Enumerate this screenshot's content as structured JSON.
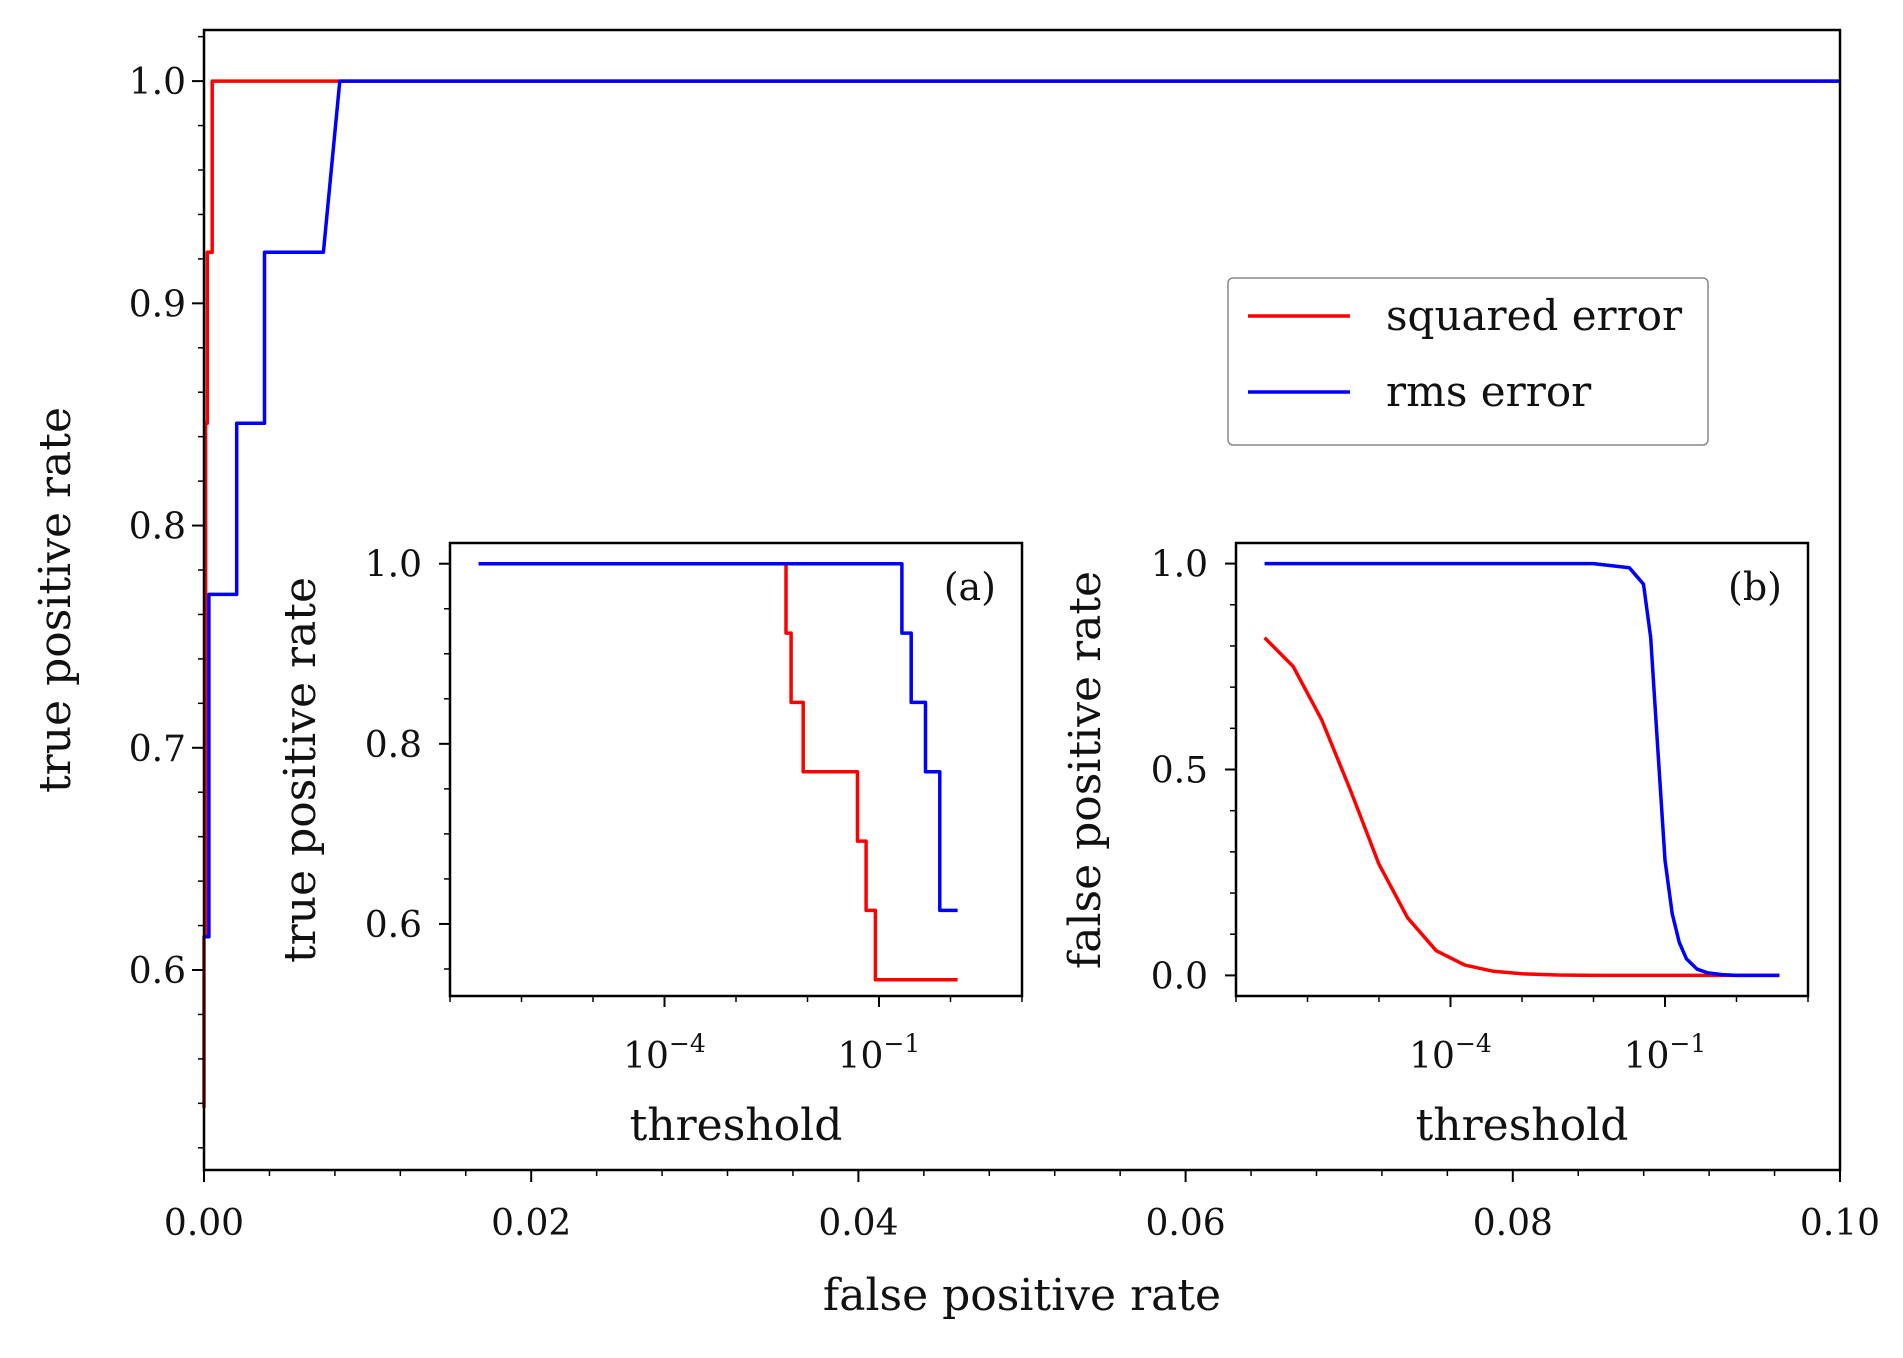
{
  "colors": {
    "squared_error": "#ff0000",
    "rms_error": "#0000ff",
    "axis": "#000000"
  },
  "chart_data": [
    {
      "id": "main",
      "type": "line",
      "title": "",
      "xlabel": "false positive rate",
      "ylabel": "true positive rate",
      "xlim": [
        0.0,
        0.1
      ],
      "ylim": [
        0.51,
        1.023
      ],
      "xticks": [
        0.0,
        0.02,
        0.04,
        0.06,
        0.08,
        0.1
      ],
      "xtick_labels": [
        "0.00",
        "0.02",
        "0.04",
        "0.06",
        "0.08",
        "0.10"
      ],
      "yticks": [
        0.6,
        0.7,
        0.8,
        0.9,
        1.0
      ],
      "ytick_labels": [
        "0.6",
        "0.7",
        "0.8",
        "0.9",
        "1.0"
      ],
      "legend": {
        "placement": "center-right",
        "entries": [
          "squared error",
          "rms error"
        ]
      },
      "series": [
        {
          "name": "squared error",
          "color_key": "squared_error",
          "x": [
            0.0,
            0.0,
            0.0001,
            0.0001,
            0.0002,
            0.0002,
            0.0005,
            0.0005,
            0.1
          ],
          "y": [
            0.538,
            0.615,
            0.615,
            0.846,
            0.846,
            0.923,
            0.923,
            1.0,
            1.0
          ]
        },
        {
          "name": "rms error",
          "color_key": "rms_error",
          "x": [
            0.0,
            0.0,
            0.0003,
            0.0003,
            0.002,
            0.002,
            0.0033,
            0.0033,
            0.0037,
            0.0037,
            0.0073,
            0.0083,
            0.1
          ],
          "y": [
            0.615,
            0.615,
            0.615,
            0.769,
            0.769,
            0.846,
            0.846,
            0.846,
            0.846,
            0.923,
            0.923,
            1.0,
            1.0
          ]
        }
      ]
    },
    {
      "id": "inset_a",
      "type": "line",
      "panel_label": "(a)",
      "xscale": "log",
      "xlabel": "threshold",
      "ylabel": "true positive rate",
      "xlim_log10": [
        -7.0,
        1.0
      ],
      "ylim": [
        0.52,
        1.023
      ],
      "xticks_log10": [
        -4,
        -1
      ],
      "xtick_labels": [
        {
          "base": "10",
          "exp": "−4"
        },
        {
          "base": "10",
          "exp": "−1"
        }
      ],
      "yticks": [
        0.6,
        0.8,
        1.0
      ],
      "ytick_labels": [
        "0.6",
        "0.8",
        "1.0"
      ],
      "series": [
        {
          "name": "squared error",
          "color_key": "squared_error",
          "x_log10": [
            -6.6,
            -2.3,
            -2.3,
            -2.23,
            -2.23,
            -2.06,
            -2.06,
            -1.3,
            -1.3,
            -1.18,
            -1.18,
            -1.05,
            -1.05,
            -0.4,
            -0.4,
            0.1
          ],
          "y": [
            1.0,
            1.0,
            0.923,
            0.923,
            0.846,
            0.846,
            0.769,
            0.769,
            0.692,
            0.692,
            0.615,
            0.615,
            0.538,
            0.538,
            0.538,
            0.538
          ]
        },
        {
          "name": "rms error",
          "color_key": "rms_error",
          "x_log10": [
            -6.6,
            -0.68,
            -0.68,
            -0.55,
            -0.55,
            -0.35,
            -0.35,
            -0.15,
            -0.15,
            0.1
          ],
          "y": [
            1.0,
            1.0,
            0.923,
            0.923,
            0.846,
            0.846,
            0.769,
            0.769,
            0.615,
            0.615
          ]
        }
      ]
    },
    {
      "id": "inset_b",
      "type": "line",
      "panel_label": "(b)",
      "xscale": "log",
      "xlabel": "threshold",
      "ylabel": "false positive rate",
      "xlim_log10": [
        -7.0,
        1.0
      ],
      "ylim": [
        -0.05,
        1.05
      ],
      "xticks_log10": [
        -4,
        -1
      ],
      "xtick_labels": [
        {
          "base": "10",
          "exp": "−4"
        },
        {
          "base": "10",
          "exp": "−1"
        }
      ],
      "yticks": [
        0.0,
        0.5,
        1.0
      ],
      "ytick_labels": [
        "0.0",
        "0.5",
        "1.0"
      ],
      "series": [
        {
          "name": "squared error",
          "color_key": "squared_error",
          "x_log10": [
            -6.6,
            -6.2,
            -5.8,
            -5.4,
            -5.0,
            -4.6,
            -4.2,
            -3.8,
            -3.4,
            -3.0,
            -2.5,
            -2.0,
            -1.0,
            0.0,
            0.6
          ],
          "y": [
            0.82,
            0.75,
            0.62,
            0.45,
            0.27,
            0.14,
            0.06,
            0.025,
            0.01,
            0.004,
            0.001,
            0.0,
            0.0,
            0.0,
            0.0
          ]
        },
        {
          "name": "rms error",
          "color_key": "rms_error",
          "x_log10": [
            -6.6,
            -3.0,
            -2.0,
            -1.5,
            -1.3,
            -1.2,
            -1.1,
            -1.0,
            -0.9,
            -0.8,
            -0.7,
            -0.55,
            -0.4,
            -0.2,
            0.0,
            0.6
          ],
          "y": [
            1.0,
            1.0,
            1.0,
            0.99,
            0.95,
            0.82,
            0.55,
            0.28,
            0.15,
            0.08,
            0.04,
            0.015,
            0.006,
            0.002,
            0.0,
            0.0
          ]
        }
      ]
    }
  ]
}
